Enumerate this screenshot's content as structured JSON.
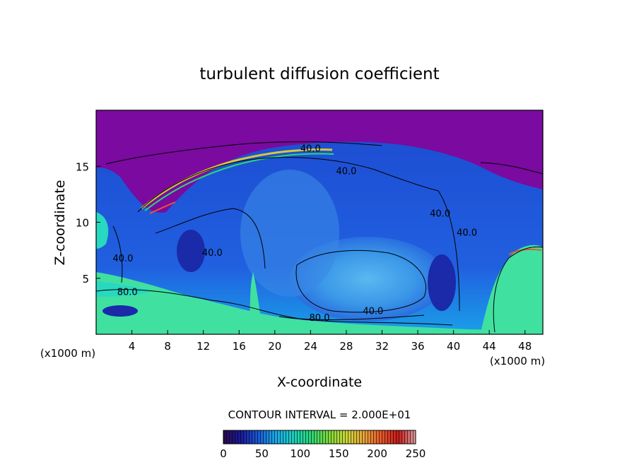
{
  "chart_data": {
    "type": "heatmap",
    "title": "turbulent diffusion coefficient",
    "xlabel": "X-coordinate",
    "ylabel": "Z-coordinate",
    "xlim": [
      0,
      50
    ],
    "ylim": [
      0,
      20
    ],
    "x_ticks": [
      4,
      8,
      12,
      16,
      20,
      24,
      28,
      32,
      36,
      40,
      44,
      48
    ],
    "y_ticks": [
      5,
      10,
      15
    ],
    "x_tick_labels": [
      "4",
      "8",
      "12",
      "16",
      "20",
      "24",
      "28",
      "32",
      "36",
      "40",
      "44",
      "48"
    ],
    "y_tick_labels": [
      "5",
      "10",
      "15"
    ],
    "x_unit_left": "(x1000 m)",
    "x_unit_right": "(x1000 m)",
    "contour_interval_text": "CONTOUR INTERVAL = 2.000E+01",
    "contour_labels": [
      {
        "text": "40.0",
        "x": 24.0,
        "y": 16.3
      },
      {
        "text": "40.0",
        "x": 28.0,
        "y": 14.3
      },
      {
        "text": "40.0",
        "x": 13.0,
        "y": 7.0
      },
      {
        "text": "40.0",
        "x": 3.0,
        "y": 6.5
      },
      {
        "text": "80.0",
        "x": 3.5,
        "y": 3.5
      },
      {
        "text": "80.0",
        "x": 25.0,
        "y": 1.2
      },
      {
        "text": "40.0",
        "x": 31.0,
        "y": 1.8
      },
      {
        "text": "40.0",
        "x": 38.5,
        "y": 10.5
      },
      {
        "text": "40.0",
        "x": 41.5,
        "y": 8.8
      }
    ],
    "colorbar": {
      "min": 0,
      "max": 250,
      "tick_values": [
        0,
        50,
        100,
        150,
        200,
        250
      ],
      "tick_labels": [
        "0",
        "50",
        "100",
        "150",
        "200",
        "250"
      ],
      "colors": [
        "#2a0a4a",
        "#1a1a9a",
        "#1a5ad8",
        "#1aa8e8",
        "#1ad0c0",
        "#28d878",
        "#7ad83a",
        "#c8d838",
        "#e8a838",
        "#e85a2a",
        "#c81a1a",
        "#e0a0a0"
      ]
    },
    "field_colors": {
      "top_layer": "#7a0aa0",
      "background": "#2050d8",
      "core": "#3098e8",
      "lowlevel": "#28d8c0",
      "low_band": "#40e0a0",
      "dark_pockets": "#1a2aa8"
    }
  }
}
